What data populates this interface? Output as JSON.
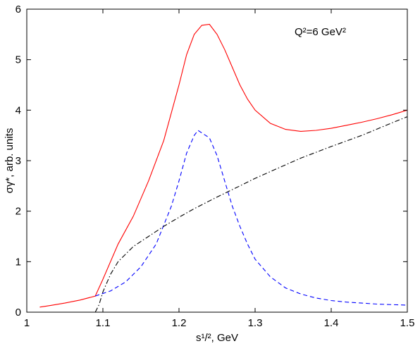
{
  "chart_data": {
    "type": "line",
    "title": "",
    "annotation": "Q²=6 GeV²",
    "xlabel": "s¹/², GeV",
    "ylabel": "σγ*, arb. units",
    "xlim": [
      1.0,
      1.5
    ],
    "ylim": [
      0,
      6
    ],
    "xticks": [
      1,
      1.1,
      1.2,
      1.3,
      1.4,
      1.5
    ],
    "xtick_labels": [
      "1",
      "1.1",
      "1.2",
      "1.3",
      "1.4",
      "1.5"
    ],
    "yticks": [
      0,
      1,
      2,
      3,
      4,
      5,
      6
    ],
    "ytick_labels": [
      "0",
      "1",
      "2",
      "3",
      "4",
      "5",
      "6"
    ],
    "grid": false,
    "series": [
      {
        "color": "#ff0000",
        "dash": "solid",
        "x": [
          1.017,
          1.03,
          1.05,
          1.07,
          1.09,
          1.1,
          1.12,
          1.14,
          1.16,
          1.18,
          1.2,
          1.21,
          1.22,
          1.23,
          1.24,
          1.25,
          1.26,
          1.27,
          1.28,
          1.29,
          1.3,
          1.32,
          1.34,
          1.36,
          1.38,
          1.4,
          1.42,
          1.44,
          1.46,
          1.48,
          1.5
        ],
        "y": [
          0.1,
          0.13,
          0.18,
          0.24,
          0.32,
          0.65,
          1.35,
          1.9,
          2.6,
          3.4,
          4.5,
          5.1,
          5.5,
          5.68,
          5.7,
          5.5,
          5.2,
          4.85,
          4.5,
          4.22,
          4.0,
          3.74,
          3.62,
          3.58,
          3.6,
          3.64,
          3.7,
          3.76,
          3.83,
          3.91,
          4.0
        ]
      },
      {
        "color": "#0000ff",
        "dash": "dashed",
        "x": [
          1.09,
          1.11,
          1.13,
          1.15,
          1.17,
          1.19,
          1.2,
          1.21,
          1.22,
          1.225,
          1.23,
          1.24,
          1.25,
          1.26,
          1.27,
          1.28,
          1.29,
          1.3,
          1.32,
          1.34,
          1.36,
          1.38,
          1.4,
          1.42,
          1.44,
          1.46,
          1.48,
          1.5
        ],
        "y": [
          0.32,
          0.42,
          0.6,
          0.9,
          1.35,
          2.1,
          2.6,
          3.15,
          3.5,
          3.6,
          3.55,
          3.45,
          3.1,
          2.6,
          2.1,
          1.7,
          1.35,
          1.05,
          0.7,
          0.48,
          0.36,
          0.28,
          0.23,
          0.2,
          0.18,
          0.16,
          0.15,
          0.14
        ]
      },
      {
        "color": "#000000",
        "dash": "dashdot",
        "x": [
          1.09,
          1.095,
          1.1,
          1.11,
          1.12,
          1.14,
          1.16,
          1.18,
          1.2,
          1.22,
          1.25,
          1.28,
          1.3,
          1.33,
          1.36,
          1.4,
          1.44,
          1.48,
          1.5
        ],
        "y": [
          0.0,
          0.15,
          0.4,
          0.75,
          1.0,
          1.3,
          1.5,
          1.7,
          1.88,
          2.05,
          2.28,
          2.5,
          2.65,
          2.85,
          3.05,
          3.28,
          3.5,
          3.75,
          3.87
        ]
      }
    ]
  }
}
